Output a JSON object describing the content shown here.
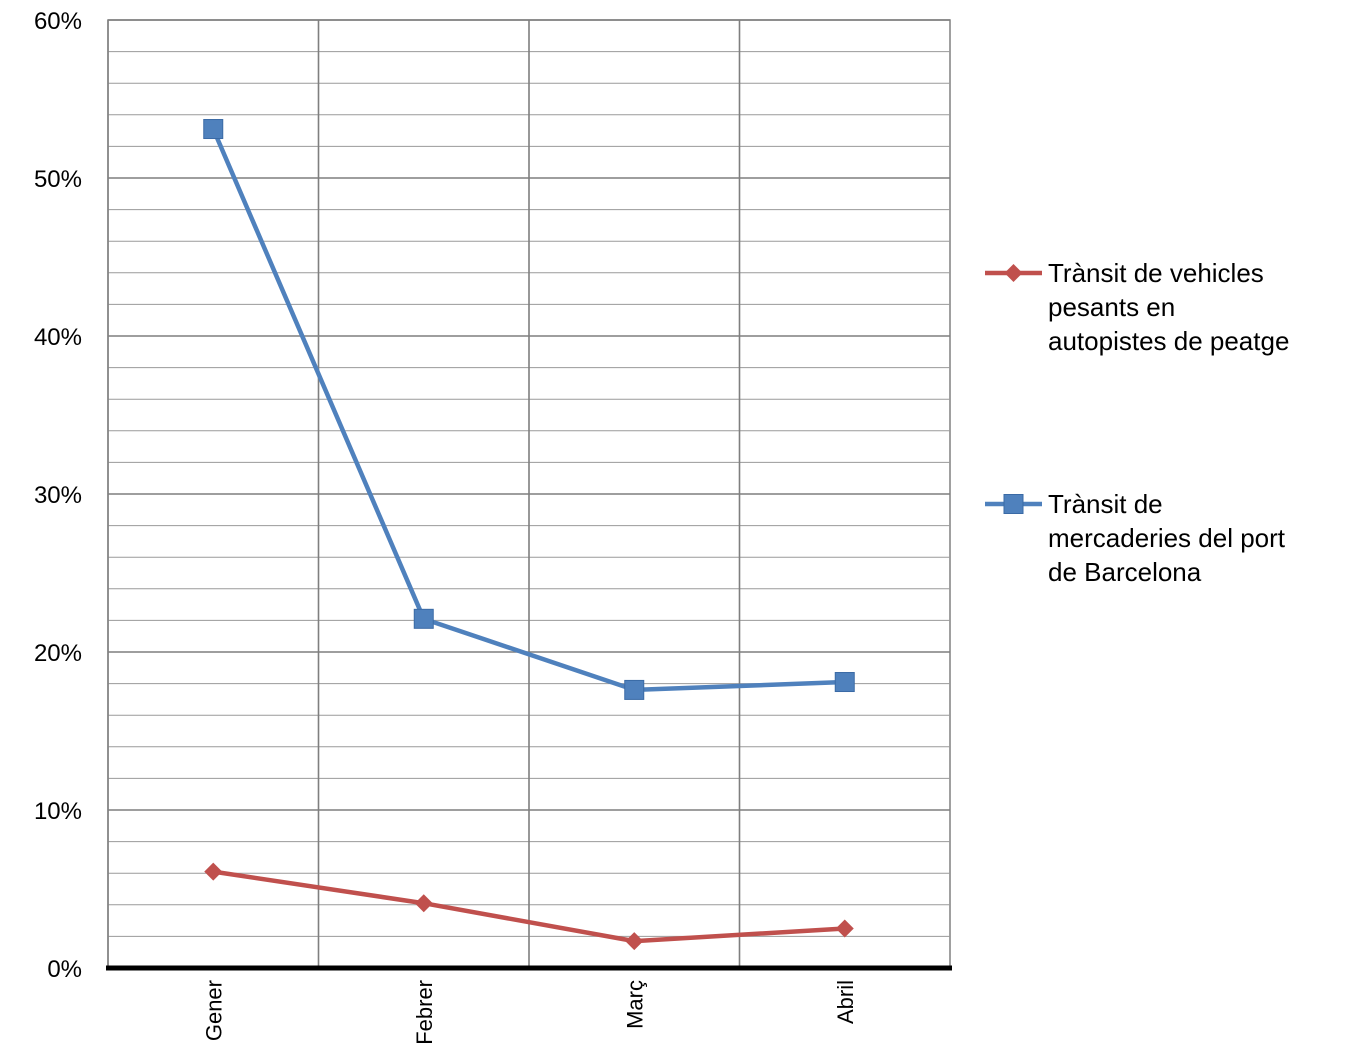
{
  "chart_data": {
    "type": "line",
    "title": "",
    "xlabel": "",
    "ylabel": "",
    "categories": [
      "Gener",
      "Febrer",
      "Març",
      "Abril"
    ],
    "ylim": [
      0,
      60
    ],
    "y_ticks": [
      "0%",
      "10%",
      "20%",
      "30%",
      "40%",
      "50%",
      "60%"
    ],
    "y_tick_values": [
      0,
      10,
      20,
      30,
      40,
      50,
      60
    ],
    "minor_gridline_step": 2,
    "grid": true,
    "legend_position": "right",
    "series": [
      {
        "name": "Trànsit de vehicles pesants en autopistes de peatge",
        "name_lines": [
          "Trànsit de vehicles",
          "pesants en",
          "autopistes de peatge"
        ],
        "values": [
          6.1,
          4.1,
          1.7,
          2.5
        ],
        "color": "#C0504D",
        "marker": "diamond"
      },
      {
        "name": "Trànsit de mercaderies del port de Barcelona",
        "name_lines": [
          "Trànsit de",
          "mercaderies del port",
          "de Barcelona"
        ],
        "values": [
          53.1,
          22.1,
          17.6,
          18.1
        ],
        "color": "#4F81BD",
        "marker": "square"
      }
    ]
  }
}
